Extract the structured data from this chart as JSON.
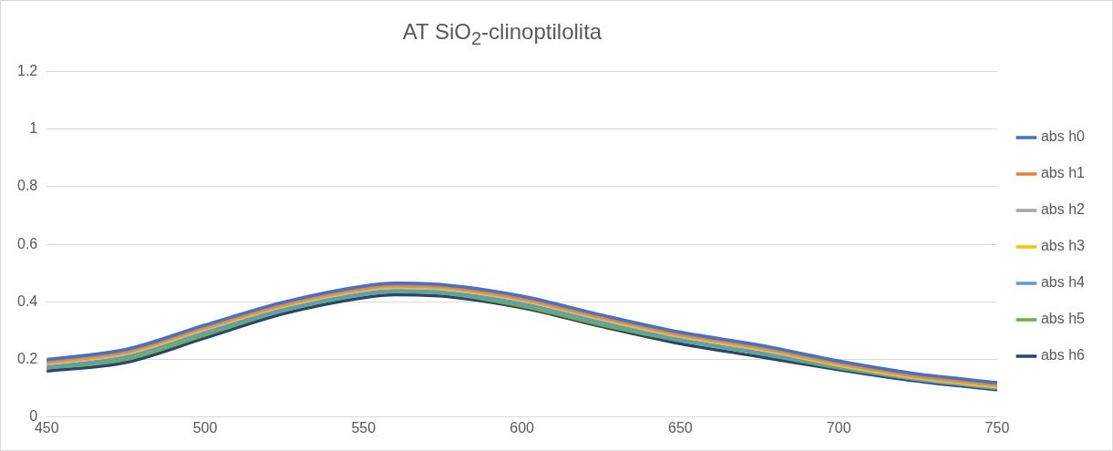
{
  "chart_data": {
    "type": "line",
    "title": "AT SiO$_{2}$-clinoptilolita",
    "x": [
      450,
      475,
      500,
      525,
      550,
      560,
      575,
      600,
      625,
      650,
      675,
      700,
      725,
      750
    ],
    "xlim": [
      450,
      750
    ],
    "xticks": [
      450,
      500,
      550,
      600,
      650,
      700,
      750
    ],
    "ylim": [
      0,
      1.2
    ],
    "yticks": [
      0,
      0.2,
      0.4,
      0.6,
      0.8,
      1,
      1.2
    ],
    "grid": "y",
    "legend": "right",
    "marker": "none",
    "line_style": "solid",
    "series": [
      {
        "name": "abs h0",
        "color": "#4472c4",
        "values": [
          0.2,
          0.235,
          0.32,
          0.4,
          0.455,
          0.465,
          0.46,
          0.42,
          0.355,
          0.295,
          0.25,
          0.195,
          0.15,
          0.12
        ]
      },
      {
        "name": "abs h1",
        "color": "#ed7d31",
        "values": [
          0.195,
          0.23,
          0.315,
          0.395,
          0.45,
          0.46,
          0.455,
          0.415,
          0.35,
          0.29,
          0.245,
          0.19,
          0.145,
          0.115
        ]
      },
      {
        "name": "abs h2",
        "color": "#a5a5a5",
        "values": [
          0.19,
          0.225,
          0.31,
          0.39,
          0.445,
          0.455,
          0.45,
          0.41,
          0.345,
          0.285,
          0.24,
          0.185,
          0.14,
          0.11
        ]
      },
      {
        "name": "abs h3",
        "color": "#ffc000",
        "values": [
          0.185,
          0.22,
          0.305,
          0.385,
          0.44,
          0.45,
          0.445,
          0.405,
          0.34,
          0.28,
          0.235,
          0.18,
          0.135,
          0.105
        ]
      },
      {
        "name": "abs h4",
        "color": "#5b9bd5",
        "values": [
          0.175,
          0.21,
          0.295,
          0.375,
          0.43,
          0.44,
          0.435,
          0.395,
          0.33,
          0.27,
          0.225,
          0.175,
          0.13,
          0.1
        ]
      },
      {
        "name": "abs h5",
        "color": "#70ad47",
        "values": [
          0.17,
          0.2,
          0.285,
          0.37,
          0.425,
          0.435,
          0.43,
          0.385,
          0.32,
          0.265,
          0.22,
          0.17,
          0.13,
          0.1
        ]
      },
      {
        "name": "abs h6",
        "color": "#264478",
        "values": [
          0.16,
          0.19,
          0.275,
          0.36,
          0.415,
          0.425,
          0.42,
          0.38,
          0.315,
          0.255,
          0.21,
          0.165,
          0.125,
          0.095
        ]
      }
    ]
  }
}
